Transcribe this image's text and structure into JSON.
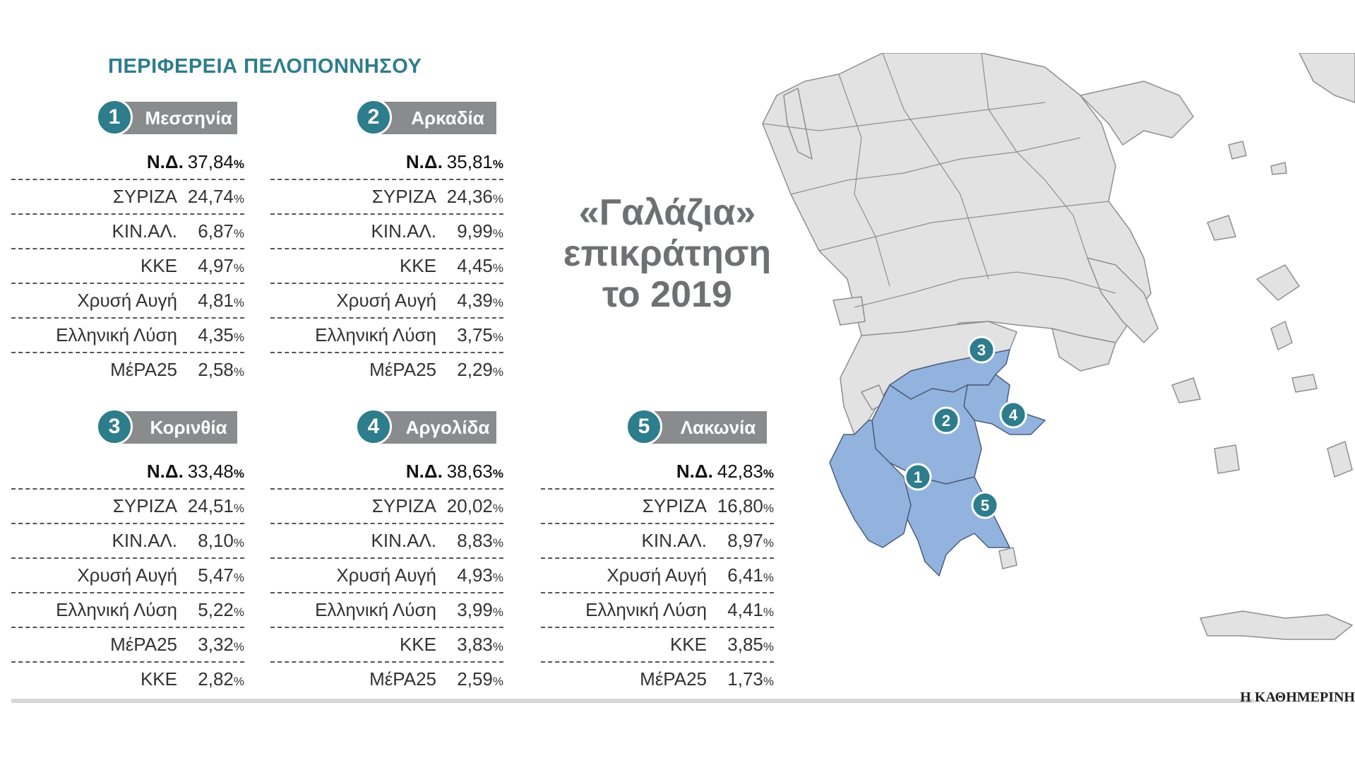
{
  "region_title": "ΠΕΡΙΦΕΡΕΙΑ ΠΕΛΟΠΟΝΝΗΣΟΥ",
  "headline": [
    "«Γαλάζια»",
    "επικράτηση",
    "το 2019"
  ],
  "brand": "Η ΚΑΘΗΜΕΡΙΝΗ",
  "pct": "%",
  "colors": {
    "accent": "#2e7d8c",
    "header_bar": "#8a8b8d",
    "highlight_region": "#93b3df",
    "land": "#e2e2e2"
  },
  "prefectures": [
    {
      "number": "1",
      "name": "Μεσσηνία",
      "rows": [
        {
          "party": "Ν.Δ.",
          "value": "37,84"
        },
        {
          "party": "ΣΥΡΙΖΑ",
          "value": "24,74"
        },
        {
          "party": "ΚΙΝ.ΑΛ.",
          "value": "6,87"
        },
        {
          "party": "ΚΚΕ",
          "value": "4,97"
        },
        {
          "party": "Χρυσή Αυγή",
          "value": "4,81"
        },
        {
          "party": "Ελληνική Λύση",
          "value": "4,35"
        },
        {
          "party": "ΜέΡΑ25",
          "value": "2,58"
        }
      ]
    },
    {
      "number": "2",
      "name": "Αρκαδία",
      "rows": [
        {
          "party": "Ν.Δ.",
          "value": "35,81"
        },
        {
          "party": "ΣΥΡΙΖΑ",
          "value": "24,36"
        },
        {
          "party": "ΚΙΝ.ΑΛ.",
          "value": "9,99"
        },
        {
          "party": "ΚΚΕ",
          "value": "4,45"
        },
        {
          "party": "Χρυσή Αυγή",
          "value": "4,39"
        },
        {
          "party": "Ελληνική Λύση",
          "value": "3,75"
        },
        {
          "party": "ΜέΡΑ25",
          "value": "2,29"
        }
      ]
    },
    {
      "number": "3",
      "name": "Κορινθία",
      "rows": [
        {
          "party": "Ν.Δ.",
          "value": "33,48"
        },
        {
          "party": "ΣΥΡΙΖΑ",
          "value": "24,51"
        },
        {
          "party": "ΚΙΝ.ΑΛ.",
          "value": "8,10"
        },
        {
          "party": "Χρυσή Αυγή",
          "value": "5,47"
        },
        {
          "party": "Ελληνική Λύση",
          "value": "5,22"
        },
        {
          "party": "ΜέΡΑ25",
          "value": "3,32"
        },
        {
          "party": "ΚΚΕ",
          "value": "2,82"
        }
      ]
    },
    {
      "number": "4",
      "name": "Αργολίδα",
      "rows": [
        {
          "party": "Ν.Δ.",
          "value": "38,63"
        },
        {
          "party": "ΣΥΡΙΖΑ",
          "value": "20,02"
        },
        {
          "party": "ΚΙΝ.ΑΛ.",
          "value": "8,83"
        },
        {
          "party": "Χρυσή Αυγή",
          "value": "4,93"
        },
        {
          "party": "Ελληνική Λύση",
          "value": "3,99"
        },
        {
          "party": "ΚΚΕ",
          "value": "3,83"
        },
        {
          "party": "ΜέΡΑ25",
          "value": "2,59"
        }
      ]
    },
    {
      "number": "5",
      "name": "Λακωνία",
      "rows": [
        {
          "party": "Ν.Δ.",
          "value": "42,83"
        },
        {
          "party": "ΣΥΡΙΖΑ",
          "value": "16,80"
        },
        {
          "party": "ΚΙΝ.ΑΛ.",
          "value": "8,97"
        },
        {
          "party": "Χρυσή Αυγή",
          "value": "6,41"
        },
        {
          "party": "Ελληνική Λύση",
          "value": "4,41"
        },
        {
          "party": "ΚΚΕ",
          "value": "3,85"
        },
        {
          "party": "ΜέΡΑ25",
          "value": "1,73"
        }
      ]
    }
  ],
  "map_markers": [
    "1",
    "2",
    "3",
    "4",
    "5"
  ]
}
